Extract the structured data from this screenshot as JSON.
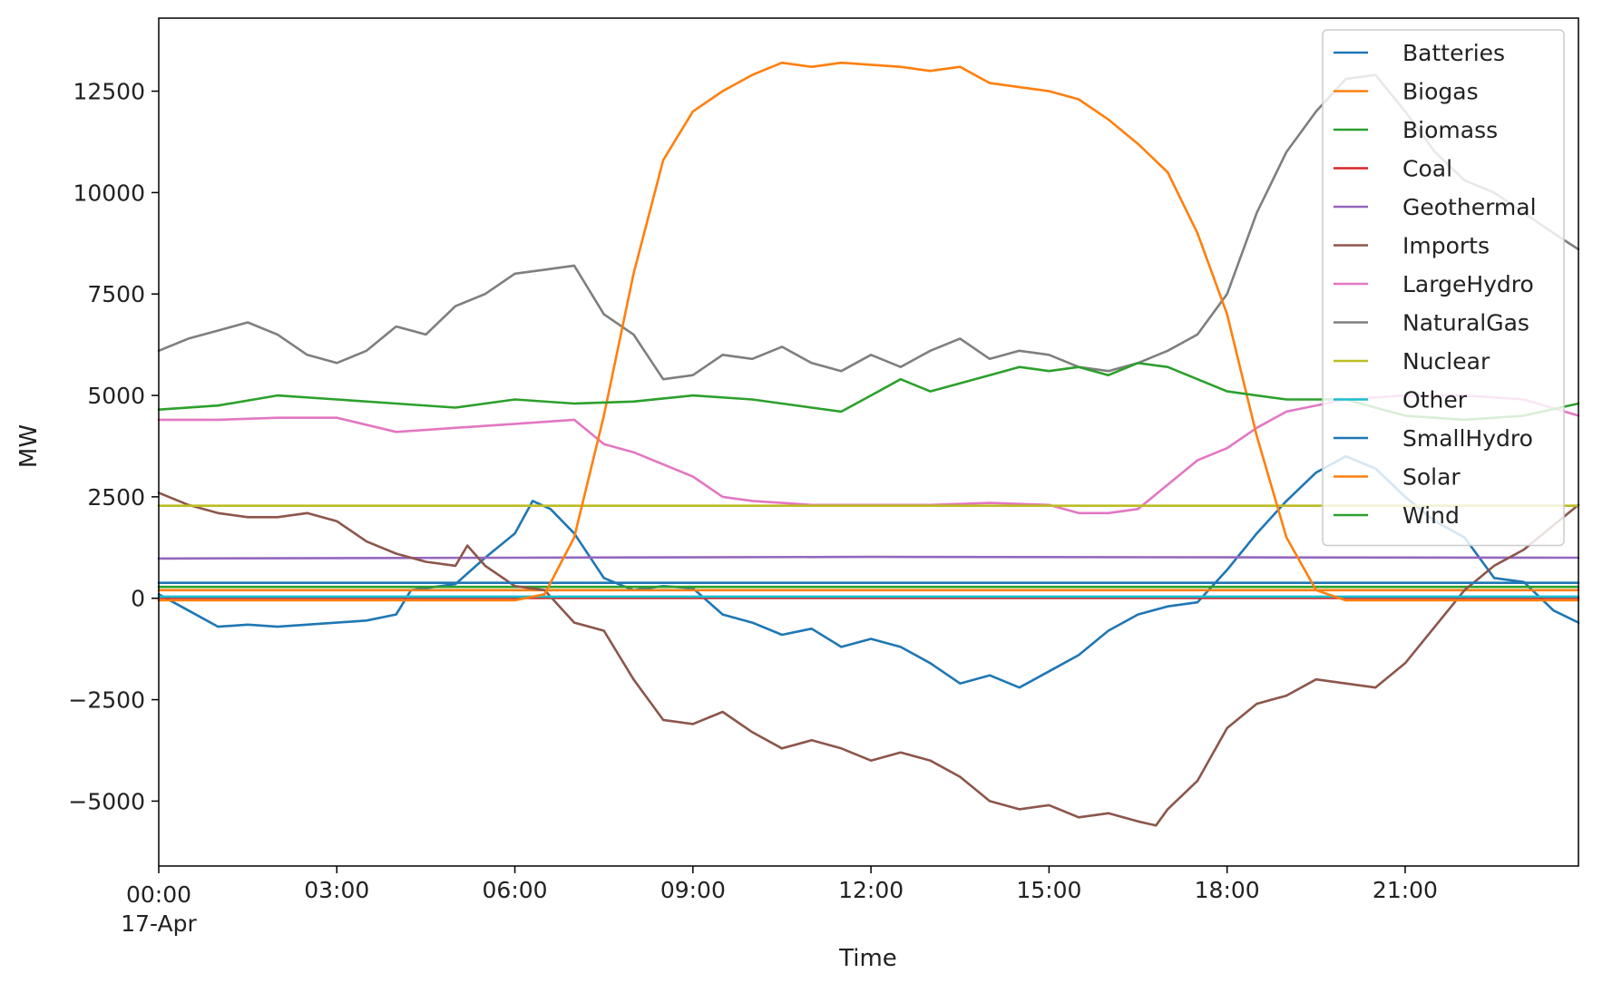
{
  "chart_data": {
    "type": "line",
    "title": "",
    "xlabel": "Time",
    "ylabel": "MW",
    "x_unit": "hour of 17-Apr",
    "xlim": [
      0,
      23.92
    ],
    "ylim": [
      -6600,
      14300
    ],
    "x_ticks": [
      {
        "x": 0,
        "label": "00:00",
        "sublabel": "17-Apr"
      },
      {
        "x": 3,
        "label": "03:00"
      },
      {
        "x": 6,
        "label": "06:00"
      },
      {
        "x": 9,
        "label": "09:00"
      },
      {
        "x": 12,
        "label": "12:00"
      },
      {
        "x": 15,
        "label": "15:00"
      },
      {
        "x": 18,
        "label": "18:00"
      },
      {
        "x": 21,
        "label": "21:00"
      }
    ],
    "y_ticks": [
      {
        "y": -5000,
        "label": "−5000"
      },
      {
        "y": -2500,
        "label": "−2500"
      },
      {
        "y": 0,
        "label": "0"
      },
      {
        "y": 2500,
        "label": "2500"
      },
      {
        "y": 5000,
        "label": "5000"
      },
      {
        "y": 7500,
        "label": "7500"
      },
      {
        "y": 10000,
        "label": "10000"
      },
      {
        "y": 12500,
        "label": "12500"
      }
    ],
    "grid": false,
    "legend_position": "top-right",
    "series": [
      {
        "name": "Batteries",
        "color": "#1f77b4",
        "points": [
          [
            0,
            100
          ],
          [
            0.5,
            -300
          ],
          [
            1,
            -700
          ],
          [
            1.5,
            -650
          ],
          [
            2,
            -700
          ],
          [
            2.5,
            -650
          ],
          [
            3,
            -600
          ],
          [
            3.5,
            -550
          ],
          [
            4,
            -400
          ],
          [
            4.25,
            200
          ],
          [
            5,
            350
          ],
          [
            5.5,
            1000
          ],
          [
            6,
            1600
          ],
          [
            6.3,
            2400
          ],
          [
            6.6,
            2200
          ],
          [
            7,
            1600
          ],
          [
            7.5,
            500
          ],
          [
            8,
            200
          ],
          [
            8.5,
            300
          ],
          [
            9,
            250
          ],
          [
            9.5,
            -400
          ],
          [
            10,
            -600
          ],
          [
            10.5,
            -900
          ],
          [
            11,
            -750
          ],
          [
            11.5,
            -1200
          ],
          [
            12,
            -1000
          ],
          [
            12.5,
            -1200
          ],
          [
            13,
            -1600
          ],
          [
            13.5,
            -2100
          ],
          [
            14,
            -1900
          ],
          [
            14.5,
            -2200
          ],
          [
            15,
            -1800
          ],
          [
            15.5,
            -1400
          ],
          [
            16,
            -800
          ],
          [
            16.5,
            -400
          ],
          [
            17,
            -200
          ],
          [
            17.5,
            -100
          ],
          [
            18,
            700
          ],
          [
            18.5,
            1600
          ],
          [
            19,
            2400
          ],
          [
            19.5,
            3100
          ],
          [
            20,
            3500
          ],
          [
            20.5,
            3200
          ],
          [
            21,
            2500
          ],
          [
            21.5,
            1900
          ],
          [
            22,
            1500
          ],
          [
            22.5,
            500
          ],
          [
            23,
            400
          ],
          [
            23.5,
            -300
          ],
          [
            23.92,
            -600
          ]
        ]
      },
      {
        "name": "Biogas",
        "color": "#ff7f0e",
        "points": [
          [
            0,
            200
          ],
          [
            24,
            200
          ]
        ]
      },
      {
        "name": "Biomass",
        "color": "#2ca02c",
        "points": [
          [
            0,
            280
          ],
          [
            24,
            280
          ]
        ]
      },
      {
        "name": "Coal",
        "color": "#d62728",
        "points": [
          [
            0,
            5
          ],
          [
            24,
            5
          ]
        ]
      },
      {
        "name": "Geothermal",
        "color": "#9467bd",
        "points": [
          [
            0,
            980
          ],
          [
            6,
            1000
          ],
          [
            12,
            1020
          ],
          [
            18,
            1010
          ],
          [
            24,
            1000
          ]
        ]
      },
      {
        "name": "Imports",
        "color": "#8c564b",
        "points": [
          [
            0,
            2600
          ],
          [
            0.5,
            2300
          ],
          [
            1,
            2100
          ],
          [
            1.5,
            2000
          ],
          [
            2,
            2000
          ],
          [
            2.5,
            2100
          ],
          [
            3,
            1900
          ],
          [
            3.5,
            1400
          ],
          [
            4,
            1100
          ],
          [
            4.5,
            900
          ],
          [
            5,
            800
          ],
          [
            5.2,
            1300
          ],
          [
            5.5,
            800
          ],
          [
            6,
            300
          ],
          [
            6.5,
            200
          ],
          [
            7,
            -600
          ],
          [
            7.5,
            -800
          ],
          [
            8,
            -2000
          ],
          [
            8.5,
            -3000
          ],
          [
            9,
            -3100
          ],
          [
            9.5,
            -2800
          ],
          [
            10,
            -3300
          ],
          [
            10.5,
            -3700
          ],
          [
            11,
            -3500
          ],
          [
            11.5,
            -3700
          ],
          [
            12,
            -4000
          ],
          [
            12.5,
            -3800
          ],
          [
            13,
            -4000
          ],
          [
            13.5,
            -4400
          ],
          [
            14,
            -5000
          ],
          [
            14.5,
            -5200
          ],
          [
            15,
            -5100
          ],
          [
            15.5,
            -5400
          ],
          [
            16,
            -5300
          ],
          [
            16.5,
            -5500
          ],
          [
            16.8,
            -5600
          ],
          [
            17,
            -5200
          ],
          [
            17.5,
            -4500
          ],
          [
            18,
            -3200
          ],
          [
            18.5,
            -2600
          ],
          [
            19,
            -2400
          ],
          [
            19.5,
            -2000
          ],
          [
            20,
            -2100
          ],
          [
            20.5,
            -2200
          ],
          [
            21,
            -1600
          ],
          [
            21.5,
            -700
          ],
          [
            22,
            200
          ],
          [
            22.5,
            800
          ],
          [
            23,
            1200
          ],
          [
            23.5,
            1800
          ],
          [
            23.92,
            2300
          ]
        ]
      },
      {
        "name": "LargeHydro",
        "color": "#e377c2",
        "points": [
          [
            0,
            4400
          ],
          [
            1,
            4400
          ],
          [
            2,
            4450
          ],
          [
            3,
            4450
          ],
          [
            4,
            4100
          ],
          [
            5,
            4200
          ],
          [
            6,
            4300
          ],
          [
            7,
            4400
          ],
          [
            7.5,
            3800
          ],
          [
            8,
            3600
          ],
          [
            9,
            3000
          ],
          [
            9.5,
            2500
          ],
          [
            10,
            2400
          ],
          [
            11,
            2300
          ],
          [
            12,
            2300
          ],
          [
            13,
            2300
          ],
          [
            14,
            2350
          ],
          [
            15,
            2300
          ],
          [
            15.5,
            2100
          ],
          [
            16,
            2100
          ],
          [
            16.5,
            2200
          ],
          [
            17,
            2800
          ],
          [
            17.5,
            3400
          ],
          [
            18,
            3700
          ],
          [
            18.5,
            4200
          ],
          [
            19,
            4600
          ],
          [
            20,
            4900
          ],
          [
            21,
            5000
          ],
          [
            22,
            5000
          ],
          [
            23,
            4900
          ],
          [
            23.92,
            4500
          ]
        ]
      },
      {
        "name": "NaturalGas",
        "color": "#7f7f7f",
        "points": [
          [
            0,
            6100
          ],
          [
            0.5,
            6400
          ],
          [
            1,
            6600
          ],
          [
            1.5,
            6800
          ],
          [
            2,
            6500
          ],
          [
            2.5,
            6000
          ],
          [
            3,
            5800
          ],
          [
            3.5,
            6100
          ],
          [
            4,
            6700
          ],
          [
            4.5,
            6500
          ],
          [
            5,
            7200
          ],
          [
            5.5,
            7500
          ],
          [
            6,
            8000
          ],
          [
            6.5,
            8100
          ],
          [
            7,
            8200
          ],
          [
            7.5,
            7000
          ],
          [
            8,
            6500
          ],
          [
            8.5,
            5400
          ],
          [
            9,
            5500
          ],
          [
            9.5,
            6000
          ],
          [
            10,
            5900
          ],
          [
            10.5,
            6200
          ],
          [
            11,
            5800
          ],
          [
            11.5,
            5600
          ],
          [
            12,
            6000
          ],
          [
            12.5,
            5700
          ],
          [
            13,
            6100
          ],
          [
            13.5,
            6400
          ],
          [
            14,
            5900
          ],
          [
            14.5,
            6100
          ],
          [
            15,
            6000
          ],
          [
            15.5,
            5700
          ],
          [
            16,
            5600
          ],
          [
            16.5,
            5800
          ],
          [
            17,
            6100
          ],
          [
            17.5,
            6500
          ],
          [
            18,
            7500
          ],
          [
            18.5,
            9500
          ],
          [
            19,
            11000
          ],
          [
            19.5,
            12000
          ],
          [
            20,
            12800
          ],
          [
            20.5,
            12900
          ],
          [
            21,
            12000
          ],
          [
            21.5,
            11000
          ],
          [
            22,
            10300
          ],
          [
            22.5,
            10000
          ],
          [
            23,
            9500
          ],
          [
            23.5,
            9000
          ],
          [
            23.92,
            8600
          ]
        ]
      },
      {
        "name": "Nuclear",
        "color": "#bcbd22",
        "points": [
          [
            0,
            2280
          ],
          [
            24,
            2280
          ]
        ]
      },
      {
        "name": "Other",
        "color": "#17becf",
        "points": [
          [
            0,
            40
          ],
          [
            24,
            40
          ]
        ]
      },
      {
        "name": "SmallHydro",
        "color": "#1f77b4",
        "points": [
          [
            0,
            380
          ],
          [
            24,
            380
          ]
        ]
      },
      {
        "name": "Solar",
        "color": "#ff7f0e",
        "points": [
          [
            0,
            -50
          ],
          [
            6,
            -50
          ],
          [
            6.5,
            100
          ],
          [
            7,
            1500
          ],
          [
            7.5,
            4500
          ],
          [
            8,
            8000
          ],
          [
            8.5,
            10800
          ],
          [
            9,
            12000
          ],
          [
            9.5,
            12500
          ],
          [
            10,
            12900
          ],
          [
            10.5,
            13200
          ],
          [
            11,
            13100
          ],
          [
            11.5,
            13200
          ],
          [
            12,
            13150
          ],
          [
            12.5,
            13100
          ],
          [
            13,
            13000
          ],
          [
            13.5,
            13100
          ],
          [
            14,
            12700
          ],
          [
            14.5,
            12600
          ],
          [
            15,
            12500
          ],
          [
            15.5,
            12300
          ],
          [
            16,
            11800
          ],
          [
            16.5,
            11200
          ],
          [
            17,
            10500
          ],
          [
            17.5,
            9000
          ],
          [
            18,
            7000
          ],
          [
            18.5,
            4000
          ],
          [
            19,
            1500
          ],
          [
            19.5,
            200
          ],
          [
            20,
            -50
          ],
          [
            23.92,
            -50
          ]
        ]
      },
      {
        "name": "Wind",
        "color": "#2ca02c",
        "points": [
          [
            0,
            4650
          ],
          [
            1,
            4750
          ],
          [
            2,
            5000
          ],
          [
            3,
            4900
          ],
          [
            4,
            4800
          ],
          [
            5,
            4700
          ],
          [
            6,
            4900
          ],
          [
            7,
            4800
          ],
          [
            8,
            4850
          ],
          [
            9,
            5000
          ],
          [
            10,
            4900
          ],
          [
            10.5,
            4800
          ],
          [
            11,
            4700
          ],
          [
            11.5,
            4600
          ],
          [
            12,
            5000
          ],
          [
            12.5,
            5400
          ],
          [
            13,
            5100
          ],
          [
            14,
            5500
          ],
          [
            14.5,
            5700
          ],
          [
            15,
            5600
          ],
          [
            15.5,
            5700
          ],
          [
            16,
            5500
          ],
          [
            16.5,
            5800
          ],
          [
            17,
            5700
          ],
          [
            18,
            5100
          ],
          [
            19,
            4900
          ],
          [
            20,
            4900
          ],
          [
            21,
            4500
          ],
          [
            22,
            4400
          ],
          [
            23,
            4500
          ],
          [
            23.92,
            4800
          ]
        ]
      }
    ]
  }
}
